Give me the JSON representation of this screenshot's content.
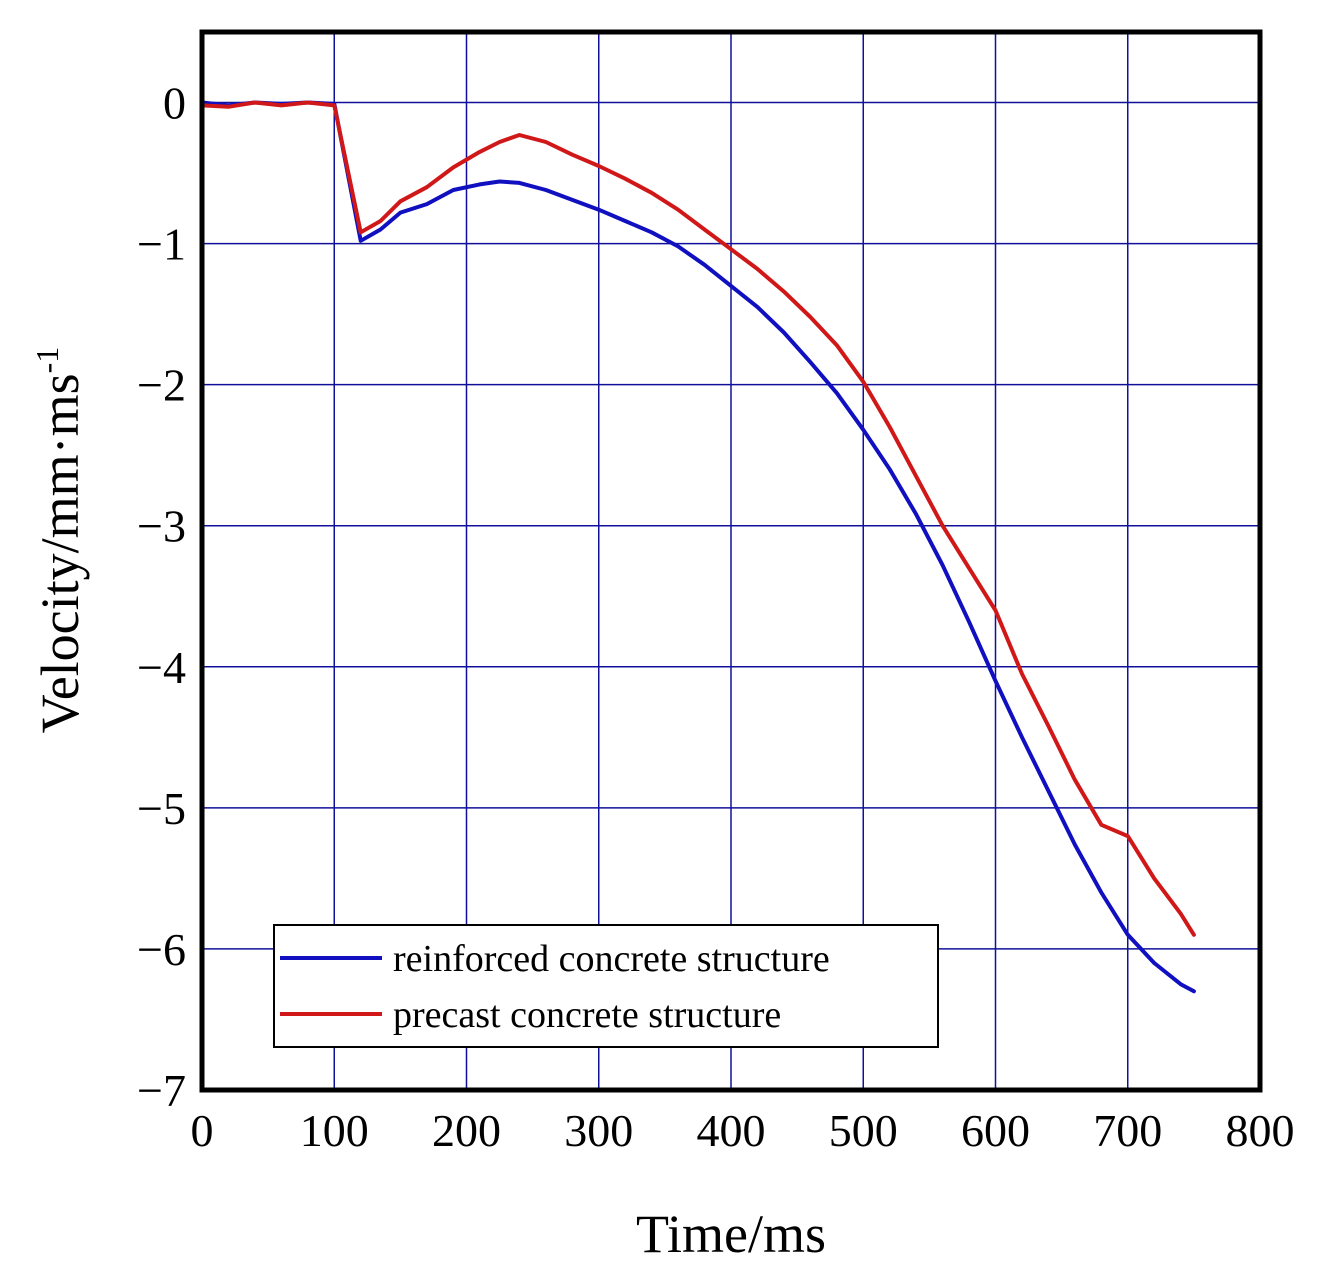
{
  "chart_data": {
    "type": "line",
    "title": "",
    "xlabel": "Time/ms",
    "ylabel": "Velocity/mm·ms",
    "ylabel_superscript": "-1",
    "xlim": [
      0,
      800
    ],
    "ylim": [
      -7,
      0.5
    ],
    "xticks": [
      0,
      100,
      200,
      300,
      400,
      500,
      600,
      700,
      800
    ],
    "xtick_labels": [
      "0",
      "100",
      "200",
      "300",
      "400",
      "500",
      "600",
      "700",
      "800"
    ],
    "yticks": [
      0,
      -1,
      -2,
      -3,
      -4,
      -5,
      -6,
      -7
    ],
    "ytick_labels": [
      "0",
      "−1",
      "−2",
      "−3",
      "−4",
      "−5",
      "−6",
      "−7"
    ],
    "grid": true,
    "legend_position": "bottom-left",
    "series": [
      {
        "name": "reinforced concrete structure",
        "color": "#1010c0",
        "x": [
          0,
          20,
          40,
          60,
          80,
          100,
          120,
          135,
          150,
          170,
          190,
          210,
          225,
          240,
          260,
          280,
          300,
          320,
          340,
          360,
          380,
          400,
          420,
          440,
          460,
          480,
          500,
          520,
          540,
          560,
          580,
          600,
          620,
          640,
          660,
          680,
          700,
          720,
          740,
          750
        ],
        "y": [
          0.0,
          -0.02,
          0.0,
          -0.01,
          0.0,
          -0.01,
          -0.98,
          -0.9,
          -0.78,
          -0.72,
          -0.62,
          -0.58,
          -0.56,
          -0.57,
          -0.62,
          -0.69,
          -0.76,
          -0.84,
          -0.92,
          -1.02,
          -1.15,
          -1.3,
          -1.45,
          -1.63,
          -1.84,
          -2.06,
          -2.32,
          -2.6,
          -2.92,
          -3.28,
          -3.68,
          -4.1,
          -4.5,
          -4.88,
          -5.26,
          -5.6,
          -5.9,
          -6.1,
          -6.25,
          -6.3
        ]
      },
      {
        "name": "precast concrete structure",
        "color": "#d01818",
        "x": [
          0,
          20,
          40,
          60,
          80,
          100,
          120,
          135,
          150,
          170,
          190,
          210,
          225,
          240,
          260,
          280,
          300,
          320,
          340,
          360,
          380,
          400,
          420,
          440,
          460,
          480,
          500,
          520,
          540,
          560,
          580,
          600,
          620,
          640,
          660,
          680,
          700,
          720,
          740,
          750
        ],
        "y": [
          -0.02,
          -0.03,
          0.0,
          -0.02,
          0.0,
          -0.02,
          -0.92,
          -0.84,
          -0.7,
          -0.6,
          -0.46,
          -0.35,
          -0.28,
          -0.23,
          -0.28,
          -0.37,
          -0.45,
          -0.54,
          -0.64,
          -0.76,
          -0.9,
          -1.04,
          -1.18,
          -1.34,
          -1.52,
          -1.72,
          -1.98,
          -2.3,
          -2.65,
          -3.0,
          -3.3,
          -3.6,
          -4.05,
          -4.42,
          -4.8,
          -5.12,
          -5.2,
          -5.5,
          -5.75,
          -5.9
        ]
      }
    ]
  }
}
